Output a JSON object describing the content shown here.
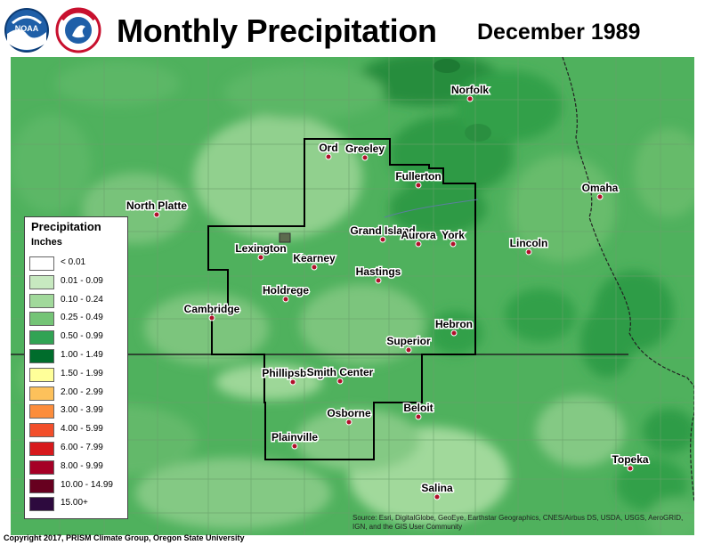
{
  "header": {
    "title": "Monthly Precipitation",
    "period": "December 1989"
  },
  "logos": [
    {
      "name": "noaa-logo",
      "text": "NOAA"
    },
    {
      "name": "nws-logo",
      "text": "NATIONAL WEATHER SERVICE"
    }
  ],
  "legend": {
    "title": "Precipitation",
    "units": "Inches",
    "classes": [
      {
        "label": "< 0.01",
        "color": "#ffffff"
      },
      {
        "label": "0.01 - 0.09",
        "color": "#c7e9c0"
      },
      {
        "label": "0.10 - 0.24",
        "color": "#a1d99b"
      },
      {
        "label": "0.25 - 0.49",
        "color": "#74c476"
      },
      {
        "label": "0.50 - 0.99",
        "color": "#31a354"
      },
      {
        "label": "1.00 - 1.49",
        "color": "#006d2c"
      },
      {
        "label": "1.50 - 1.99",
        "color": "#ffff99"
      },
      {
        "label": "2.00 - 2.99",
        "color": "#fdc15b"
      },
      {
        "label": "3.00 - 3.99",
        "color": "#fc8d3c"
      },
      {
        "label": "4.00 - 5.99",
        "color": "#f24e2a"
      },
      {
        "label": "6.00 - 7.99",
        "color": "#d7191c"
      },
      {
        "label": "8.00 - 9.99",
        "color": "#a50026"
      },
      {
        "label": "10.00 - 14.99",
        "color": "#67001f"
      },
      {
        "label": "15.00+",
        "color": "#2d0a3e"
      }
    ]
  },
  "cities": [
    "Norfolk",
    "Ord",
    "Greeley",
    "Fullerton",
    "North Platte",
    "Omaha",
    "Lexington",
    "Grand Island",
    "Aurora",
    "York",
    "Lincoln",
    "Kearney",
    "Hastings",
    "Holdrege",
    "Cambridge",
    "Hebron",
    "Superior",
    "Phillipsburg",
    "Smith Center",
    "Beloit",
    "Osborne",
    "Plainville",
    "Topeka",
    "Salina"
  ],
  "footer": {
    "copyright": "Copyright 2017, PRISM Climate Group, Oregon State University",
    "source": "Source: Esri, DigitalGlobe, GeoEye, Earthstar Geographics, CNES/Airbus DS, USDA, USGS, AeroGRID, IGN, and the GIS User Community"
  }
}
